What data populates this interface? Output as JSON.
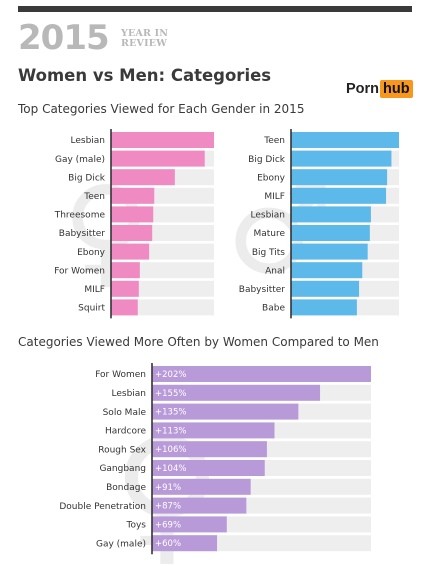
{
  "header": {
    "year": "2015",
    "year_in_review_line1": "YEAR IN",
    "year_in_review_line2": "REVIEW",
    "title": "Women vs Men: Categories",
    "brand_part1": "Porn",
    "brand_part2": "hub"
  },
  "colors": {
    "women_bar": "#f08ac3",
    "men_bar": "#5cb9e9",
    "diff_bar": "#b99ad9",
    "track": "#eeeeee",
    "brand_accent": "#f7971d"
  },
  "section1": {
    "subtitle": "Top Categories Viewed for Each Gender in 2015"
  },
  "section2": {
    "subtitle": "Categories Viewed More Often by Women Compared to Men"
  },
  "chart_data": [
    {
      "type": "bar",
      "orientation": "horizontal",
      "categories": [
        "Lesbian",
        "Gay (male)",
        "Big Dick",
        "Teen",
        "Threesome",
        "Babysitter",
        "Ebony",
        "For Women",
        "MILF",
        "Squirt"
      ],
      "values": [
        100,
        91,
        62,
        42,
        41,
        40,
        37,
        28,
        27,
        26
      ],
      "xlim": [
        0,
        100
      ]
    },
    {
      "type": "bar",
      "orientation": "horizontal",
      "categories": [
        "Teen",
        "Big Dick",
        "Ebony",
        "MILF",
        "Lesbian",
        "Mature",
        "Big Tits",
        "Anal",
        "Babysitter",
        "Babe"
      ],
      "values": [
        100,
        93,
        89,
        88,
        74,
        73,
        71,
        66,
        63,
        61
      ],
      "xlim": [
        0,
        100
      ]
    },
    {
      "type": "bar",
      "orientation": "horizontal",
      "categories": [
        "For Women",
        "Lesbian",
        "Solo Male",
        "Hardcore",
        "Rough Sex",
        "Gangbang",
        "Bondage",
        "Double Penetration",
        "Toys",
        "Gay (male)"
      ],
      "values": [
        202,
        155,
        135,
        113,
        106,
        104,
        91,
        87,
        69,
        60
      ],
      "value_labels": [
        "+202%",
        "+155%",
        "+135%",
        "+113%",
        "+106%",
        "+104%",
        "+91%",
        "+87%",
        "+69%",
        "+60%"
      ],
      "xlim": [
        0,
        202
      ]
    }
  ]
}
